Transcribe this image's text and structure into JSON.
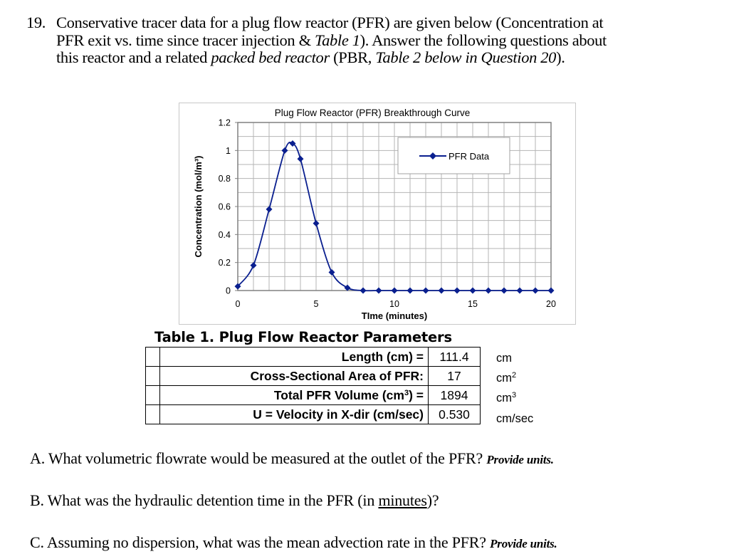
{
  "question_header": {
    "number": "19.",
    "line1": "Conservative tracer data for a plug flow reactor (PFR) are given below (Concentration at",
    "line2_a": "PFR exit vs. time since tracer injection & ",
    "line2_italic": "Table 1",
    "line2_b": ").  Answer the following questions about",
    "line3_a": "this reactor and a related ",
    "line3_italic": "packed bed reactor",
    "line3_b": " (PBR, ",
    "line3_italic2": "Table 2 below in Question 20",
    "line3_c": ")."
  },
  "chart": {
    "title": "Plug Flow Reactor (PFR) Breakthrough Curve",
    "xlabel": "TIme (minutes)",
    "ylabel": "Concentration (mol/m³)",
    "legend_label": "PFR Data",
    "x_ticks": [
      "0",
      "5",
      "10",
      "15",
      "20"
    ],
    "y_ticks": [
      "0",
      "0.2",
      "0.4",
      "0.6",
      "0.8",
      "1",
      "1.2"
    ],
    "series_color": "#0a1f8f"
  },
  "chart_data": {
    "type": "line",
    "title": "Plug Flow Reactor (PFR) Breakthrough Curve",
    "xlabel": "TIme (minutes)",
    "ylabel": "Concentration (mol/m3)",
    "xlim": [
      0,
      20
    ],
    "ylim": [
      0,
      1.2
    ],
    "x_ticks": [
      0,
      5,
      10,
      15,
      20
    ],
    "y_ticks": [
      0,
      0.2,
      0.4,
      0.6,
      0.8,
      1,
      1.2
    ],
    "grid": true,
    "legend_position": "upper right",
    "series": [
      {
        "name": "PFR Data",
        "marker": "diamond",
        "smooth": true,
        "x": [
          0,
          1,
          2,
          3,
          3.5,
          4,
          5,
          6,
          7,
          8,
          9,
          10,
          11,
          12,
          13,
          14,
          15,
          16,
          17,
          18,
          19,
          20
        ],
        "y": [
          0.03,
          0.18,
          0.58,
          1.0,
          1.05,
          0.94,
          0.48,
          0.13,
          0.02,
          0,
          0,
          0,
          0,
          0,
          0,
          0,
          0,
          0,
          0,
          0,
          0,
          0
        ]
      }
    ]
  },
  "table1": {
    "title": "Table 1. Plug Flow Reactor Parameters",
    "rows": [
      {
        "label": "Length (cm) =",
        "value": "111.4",
        "unit": "cm"
      },
      {
        "label": "Cross-Sectional Area of PFR:",
        "value": "17",
        "unit": "cm",
        "unit_sup": "2"
      },
      {
        "label_a": "Total PFR Volume (cm",
        "label_sup": "3",
        "label_b": ") =",
        "value": "1894",
        "unit": "cm",
        "unit_sup": "3"
      },
      {
        "label": "U = Velocity in X-dir (cm/sec)",
        "value": "0.530",
        "unit": "cm/sec"
      }
    ]
  },
  "questions": {
    "A": {
      "text": "A. What volumetric flowrate would be measured at the outlet of the PFR? ",
      "note": "Provide units."
    },
    "B": {
      "text_a": "B. What was the hydraulic detention time in the PFR (in ",
      "underlined": "minutes",
      "text_b": ")?"
    },
    "C": {
      "text": "C. Assuming no dispersion, what was the mean advection rate in the PFR? ",
      "note": "Provide units."
    }
  }
}
